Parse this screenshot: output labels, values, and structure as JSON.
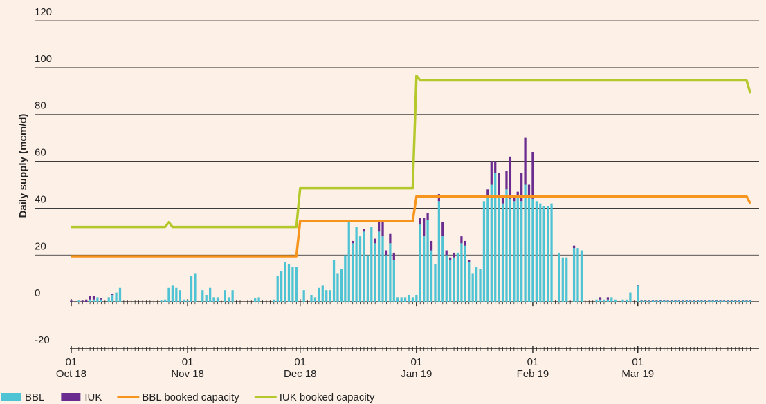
{
  "chart_data": {
    "type": "bar-line",
    "y_label": "Daily supply (mcm/d)",
    "x": [
      "2018-10-01",
      "2018-10-02",
      "2018-10-03",
      "2018-10-04",
      "2018-10-05",
      "2018-10-06",
      "2018-10-07",
      "2018-10-08",
      "2018-10-09",
      "2018-10-10",
      "2018-10-11",
      "2018-10-12",
      "2018-10-13",
      "2018-10-14",
      "2018-10-15",
      "2018-10-16",
      "2018-10-17",
      "2018-10-18",
      "2018-10-19",
      "2018-10-20",
      "2018-10-21",
      "2018-10-22",
      "2018-10-23",
      "2018-10-24",
      "2018-10-25",
      "2018-10-26",
      "2018-10-27",
      "2018-10-28",
      "2018-10-29",
      "2018-10-30",
      "2018-10-31",
      "2018-11-01",
      "2018-11-02",
      "2018-11-03",
      "2018-11-04",
      "2018-11-05",
      "2018-11-06",
      "2018-11-07",
      "2018-11-08",
      "2018-11-09",
      "2018-11-10",
      "2018-11-11",
      "2018-11-12",
      "2018-11-13",
      "2018-11-14",
      "2018-11-15",
      "2018-11-16",
      "2018-11-17",
      "2018-11-18",
      "2018-11-19",
      "2018-11-20",
      "2018-11-21",
      "2018-11-22",
      "2018-11-23",
      "2018-11-24",
      "2018-11-25",
      "2018-11-26",
      "2018-11-27",
      "2018-11-28",
      "2018-11-29",
      "2018-11-30",
      "2018-12-01",
      "2018-12-02",
      "2018-12-03",
      "2018-12-04",
      "2018-12-05",
      "2018-12-06",
      "2018-12-07",
      "2018-12-08",
      "2018-12-09",
      "2018-12-10",
      "2018-12-11",
      "2018-12-12",
      "2018-12-13",
      "2018-12-14",
      "2018-12-15",
      "2018-12-16",
      "2018-12-17",
      "2018-12-18",
      "2018-12-19",
      "2018-12-20",
      "2018-12-21",
      "2018-12-22",
      "2018-12-23",
      "2018-12-24",
      "2018-12-25",
      "2018-12-26",
      "2018-12-27",
      "2018-12-28",
      "2018-12-29",
      "2018-12-30",
      "2018-12-31",
      "2019-01-01",
      "2019-01-02",
      "2019-01-03",
      "2019-01-04",
      "2019-01-05",
      "2019-01-06",
      "2019-01-07",
      "2019-01-08",
      "2019-01-09",
      "2019-01-10",
      "2019-01-11",
      "2019-01-12",
      "2019-01-13",
      "2019-01-14",
      "2019-01-15",
      "2019-01-16",
      "2019-01-17",
      "2019-01-18",
      "2019-01-19",
      "2019-01-20",
      "2019-01-21",
      "2019-01-22",
      "2019-01-23",
      "2019-01-24",
      "2019-01-25",
      "2019-01-26",
      "2019-01-27",
      "2019-01-28",
      "2019-01-29",
      "2019-01-30",
      "2019-01-31",
      "2019-02-01",
      "2019-02-02",
      "2019-02-03",
      "2019-02-04",
      "2019-02-05",
      "2019-02-06",
      "2019-02-07",
      "2019-02-08",
      "2019-02-09",
      "2019-02-10",
      "2019-02-11",
      "2019-02-12",
      "2019-02-13",
      "2019-02-14",
      "2019-02-15",
      "2019-02-16",
      "2019-02-17",
      "2019-02-18",
      "2019-02-19",
      "2019-02-20",
      "2019-02-21",
      "2019-02-22",
      "2019-02-23",
      "2019-02-24",
      "2019-02-25",
      "2019-02-26",
      "2019-02-27",
      "2019-02-28",
      "2019-03-01",
      "2019-03-02",
      "2019-03-03",
      "2019-03-04",
      "2019-03-05",
      "2019-03-06",
      "2019-03-07",
      "2019-03-08",
      "2019-03-09",
      "2019-03-10",
      "2019-03-11",
      "2019-03-12",
      "2019-03-13",
      "2019-03-14",
      "2019-03-15",
      "2019-03-16",
      "2019-03-17",
      "2019-03-18",
      "2019-03-19",
      "2019-03-20",
      "2019-03-21",
      "2019-03-22",
      "2019-03-23",
      "2019-03-24",
      "2019-03-25",
      "2019-03-26",
      "2019-03-27",
      "2019-03-28",
      "2019-03-29",
      "2019-03-30",
      "2019-03-31"
    ],
    "series": [
      {
        "name": "BBL",
        "kind": "bar",
        "color": "#4ec3d3",
        "values": [
          0,
          0,
          0.5,
          0,
          0,
          1,
          1,
          2,
          1,
          0,
          2,
          3,
          4,
          6,
          0,
          0,
          0,
          0,
          0,
          0,
          0,
          0,
          0,
          0,
          0.5,
          1,
          6,
          7,
          6,
          5,
          1,
          0.5,
          11,
          12,
          0,
          5,
          3,
          6,
          2,
          2,
          0,
          5,
          2,
          5,
          0,
          0,
          0,
          0,
          0,
          1.5,
          2,
          0,
          0,
          0,
          1,
          11,
          13,
          17,
          16,
          15,
          15,
          0,
          5,
          0,
          3,
          2,
          6,
          7,
          5,
          5,
          18,
          12,
          14,
          20,
          34,
          25,
          32,
          28,
          30,
          20,
          32,
          25,
          30,
          28,
          20,
          25,
          18,
          2,
          2,
          2,
          3,
          2,
          3,
          33,
          28,
          35,
          22,
          16,
          43,
          28,
          20,
          18,
          19,
          21,
          25,
          24,
          17,
          12,
          15,
          14,
          43,
          45,
          50,
          55,
          45,
          42,
          48,
          44,
          43,
          45,
          43,
          50,
          45,
          44,
          43,
          42,
          41,
          41,
          42,
          0,
          21,
          19,
          19,
          0,
          23,
          23,
          22,
          0,
          0,
          0,
          1,
          1,
          1,
          1,
          2,
          1,
          0,
          1,
          1,
          4,
          0,
          7,
          0.5,
          0.5,
          0.5,
          0.5,
          0.5,
          0.5,
          0.5,
          0.5,
          0.5,
          0.5,
          0.5,
          0.5,
          0.5,
          0.5,
          0.5,
          0.5,
          0.5,
          0.5,
          0.5,
          0.5,
          0.5,
          0.5,
          0.5,
          0.5,
          0.5,
          0.5,
          0.5,
          0.5,
          0.5,
          0.5
        ]
      },
      {
        "name": "IUK",
        "kind": "bar",
        "color": "#6a2c8f",
        "values": [
          0.5,
          0,
          0,
          0.5,
          1,
          1.5,
          1.5,
          0,
          0.5,
          0,
          0,
          0.5,
          0,
          0,
          0,
          0,
          0,
          0,
          0,
          0,
          0,
          0,
          0,
          0,
          0,
          0,
          0,
          0,
          0,
          0,
          0,
          0,
          0,
          0,
          0,
          0,
          0,
          0,
          0,
          0,
          0,
          0,
          0,
          0,
          0,
          0,
          0,
          0,
          0,
          0,
          0,
          0,
          0,
          0,
          0,
          0,
          0,
          0,
          0,
          0,
          0,
          0,
          0,
          0,
          0,
          0,
          0,
          0,
          0,
          0,
          0,
          0,
          0,
          0,
          0,
          1,
          0,
          0,
          1,
          0,
          0,
          2,
          4,
          6,
          2,
          4,
          3,
          0,
          0,
          0,
          0,
          0,
          0,
          3,
          8,
          3,
          4,
          0,
          3,
          6,
          2,
          1,
          2,
          0,
          3,
          2,
          1,
          0,
          0,
          0,
          0,
          3,
          10,
          5,
          10,
          3,
          8,
          18,
          2,
          2,
          12,
          20,
          5,
          20,
          0,
          0,
          0,
          0,
          0,
          0,
          0,
          0,
          0,
          0,
          1,
          0,
          0,
          0,
          0,
          0,
          0,
          1,
          0,
          1,
          0,
          0,
          0,
          0,
          0,
          0,
          0,
          0.3,
          0.3,
          0.3,
          0.3,
          0.3,
          0.3,
          0.3,
          0.3,
          0.3,
          0.3,
          0.3,
          0.3,
          0.3,
          0.3,
          0.3,
          0.3,
          0.3,
          0.3,
          0.3,
          0.3,
          0.3,
          0.3,
          0.3,
          0.3,
          0.3,
          0.3,
          0.3,
          0.3,
          0.3,
          0.3,
          0.3
        ]
      },
      {
        "name": "BBL booked capacity",
        "kind": "line",
        "color": "#f7941d",
        "values": [
          19.5,
          19.5,
          19.5,
          19.5,
          19.5,
          19.5,
          19.5,
          19.5,
          19.5,
          19.5,
          19.5,
          19.5,
          19.5,
          19.5,
          19.5,
          19.5,
          19.5,
          19.5,
          19.5,
          19.5,
          19.5,
          19.5,
          19.5,
          19.5,
          19.5,
          19.5,
          19.5,
          19.5,
          19.5,
          19.5,
          19.5,
          19.5,
          19.5,
          19.5,
          19.5,
          19.5,
          19.5,
          19.5,
          19.5,
          19.5,
          19.5,
          19.5,
          19.5,
          19.5,
          19.5,
          19.5,
          19.5,
          19.5,
          19.5,
          19.5,
          19.5,
          19.5,
          19.5,
          19.5,
          19.5,
          19.5,
          19.5,
          19.5,
          19.5,
          19.5,
          19.5,
          34.5,
          34.5,
          34.5,
          34.5,
          34.5,
          34.5,
          34.5,
          34.5,
          34.5,
          34.5,
          34.5,
          34.5,
          34.5,
          34.5,
          34.5,
          34.5,
          34.5,
          34.5,
          34.5,
          34.5,
          34.5,
          34.5,
          34.5,
          34.5,
          34.5,
          34.5,
          34.5,
          34.5,
          34.5,
          34.5,
          34.5,
          45,
          45,
          45,
          45,
          45,
          45,
          45,
          45,
          45,
          45,
          45,
          45,
          45,
          45,
          45,
          45,
          45,
          45,
          45,
          45,
          45,
          45,
          45,
          45,
          45,
          45,
          45,
          45,
          45,
          45,
          45,
          45,
          45,
          45,
          45,
          45,
          45,
          45,
          45,
          45,
          45,
          45,
          45,
          45,
          45,
          45,
          45,
          45,
          45,
          45,
          45,
          45,
          45,
          45,
          45,
          45,
          45,
          45,
          45,
          45,
          45,
          45,
          45,
          45,
          45,
          45,
          45,
          45,
          45,
          45,
          45,
          45,
          45,
          45,
          45,
          45,
          45,
          45,
          45,
          45,
          45,
          45,
          45,
          45,
          45,
          45,
          45,
          45,
          45,
          42
        ]
      },
      {
        "name": "IUK booked capacity",
        "kind": "line",
        "color": "#b4c82b",
        "values": [
          32,
          32,
          32,
          32,
          32,
          32,
          32,
          32,
          32,
          32,
          32,
          32,
          32,
          32,
          32,
          32,
          32,
          32,
          32,
          32,
          32,
          32,
          32,
          32,
          32,
          32,
          34,
          32,
          32,
          32,
          32,
          32,
          32,
          32,
          32,
          32,
          32,
          32,
          32,
          32,
          32,
          32,
          32,
          32,
          32,
          32,
          32,
          32,
          32,
          32,
          32,
          32,
          32,
          32,
          32,
          32,
          32,
          32,
          32,
          32,
          32,
          48.5,
          48.5,
          48.5,
          48.5,
          48.5,
          48.5,
          48.5,
          48.5,
          48.5,
          48.5,
          48.5,
          48.5,
          48.5,
          48.5,
          48.5,
          48.5,
          48.5,
          48.5,
          48.5,
          48.5,
          48.5,
          48.5,
          48.5,
          48.5,
          48.5,
          48.5,
          48.5,
          48.5,
          48.5,
          48.5,
          48.5,
          96.5,
          94.5,
          94.5,
          94.5,
          94.5,
          94.5,
          94.5,
          94.5,
          94.5,
          94.5,
          94.5,
          94.5,
          94.5,
          94.5,
          94.5,
          94.5,
          94.5,
          94.5,
          94.5,
          94.5,
          94.5,
          94.5,
          94.5,
          94.5,
          94.5,
          94.5,
          94.5,
          94.5,
          94.5,
          94.5,
          94.5,
          94.5,
          94.5,
          94.5,
          94.5,
          94.5,
          94.5,
          94.5,
          94.5,
          94.5,
          94.5,
          94.5,
          94.5,
          94.5,
          94.5,
          94.5,
          94.5,
          94.5,
          94.5,
          94.5,
          94.5,
          94.5,
          94.5,
          94.5,
          94.5,
          94.5,
          94.5,
          94.5,
          94.5,
          94.5,
          94.5,
          94.5,
          94.5,
          94.5,
          94.5,
          94.5,
          94.5,
          94.5,
          94.5,
          94.5,
          94.5,
          94.5,
          94.5,
          94.5,
          94.5,
          94.5,
          94.5,
          94.5,
          94.5,
          94.5,
          94.5,
          94.5,
          94.5,
          94.5,
          94.5,
          94.5,
          94.5,
          94.5,
          94.5,
          89
        ]
      }
    ],
    "xlim": [
      "2018-10-01",
      "2019-03-30"
    ],
    "xticks": [
      {
        "value": "2018-10-01",
        "label": [
          "01",
          "Oct 18"
        ]
      },
      {
        "value": "2018-11-01",
        "label": [
          "01",
          "Nov 18"
        ]
      },
      {
        "value": "2018-12-01",
        "label": [
          "01",
          "Dec 18"
        ]
      },
      {
        "value": "2019-01-01",
        "label": [
          "01",
          "Jan 19"
        ]
      },
      {
        "value": "2019-02-01",
        "label": [
          "01",
          "Feb 19"
        ]
      },
      {
        "value": "2019-03-01",
        "label": [
          "01",
          "Mar 19"
        ]
      }
    ],
    "ylim": [
      -20,
      120
    ],
    "yticks": [
      -20,
      0,
      20,
      40,
      60,
      80,
      100,
      120
    ],
    "grid": true,
    "stacked": true,
    "legend": "bottom"
  }
}
